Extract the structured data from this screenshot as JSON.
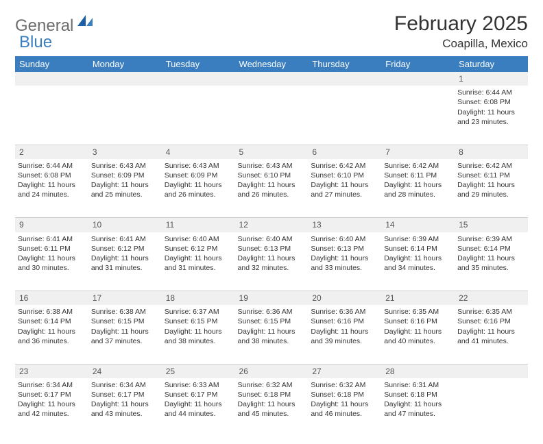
{
  "logo": {
    "general": "General",
    "blue": "Blue"
  },
  "title": "February 2025",
  "location": "Coapilla, Mexico",
  "colors": {
    "header_bg": "#3a7ebf",
    "header_fg": "#ffffff",
    "daynum_bg": "#f0f0f0",
    "text": "#333333",
    "logo_gray": "#6d6d6d",
    "logo_blue": "#3a7ebf"
  },
  "weekdays": [
    "Sunday",
    "Monday",
    "Tuesday",
    "Wednesday",
    "Thursday",
    "Friday",
    "Saturday"
  ],
  "weeks": [
    {
      "nums": [
        "",
        "",
        "",
        "",
        "",
        "",
        "1"
      ],
      "cells": [
        null,
        null,
        null,
        null,
        null,
        null,
        {
          "sunrise": "6:44 AM",
          "sunset": "6:08 PM",
          "daylight": "11 hours and 23 minutes."
        }
      ]
    },
    {
      "nums": [
        "2",
        "3",
        "4",
        "5",
        "6",
        "7",
        "8"
      ],
      "cells": [
        {
          "sunrise": "6:44 AM",
          "sunset": "6:08 PM",
          "daylight": "11 hours and 24 minutes."
        },
        {
          "sunrise": "6:43 AM",
          "sunset": "6:09 PM",
          "daylight": "11 hours and 25 minutes."
        },
        {
          "sunrise": "6:43 AM",
          "sunset": "6:09 PM",
          "daylight": "11 hours and 26 minutes."
        },
        {
          "sunrise": "6:43 AM",
          "sunset": "6:10 PM",
          "daylight": "11 hours and 26 minutes."
        },
        {
          "sunrise": "6:42 AM",
          "sunset": "6:10 PM",
          "daylight": "11 hours and 27 minutes."
        },
        {
          "sunrise": "6:42 AM",
          "sunset": "6:11 PM",
          "daylight": "11 hours and 28 minutes."
        },
        {
          "sunrise": "6:42 AM",
          "sunset": "6:11 PM",
          "daylight": "11 hours and 29 minutes."
        }
      ]
    },
    {
      "nums": [
        "9",
        "10",
        "11",
        "12",
        "13",
        "14",
        "15"
      ],
      "cells": [
        {
          "sunrise": "6:41 AM",
          "sunset": "6:11 PM",
          "daylight": "11 hours and 30 minutes."
        },
        {
          "sunrise": "6:41 AM",
          "sunset": "6:12 PM",
          "daylight": "11 hours and 31 minutes."
        },
        {
          "sunrise": "6:40 AM",
          "sunset": "6:12 PM",
          "daylight": "11 hours and 31 minutes."
        },
        {
          "sunrise": "6:40 AM",
          "sunset": "6:13 PM",
          "daylight": "11 hours and 32 minutes."
        },
        {
          "sunrise": "6:40 AM",
          "sunset": "6:13 PM",
          "daylight": "11 hours and 33 minutes."
        },
        {
          "sunrise": "6:39 AM",
          "sunset": "6:14 PM",
          "daylight": "11 hours and 34 minutes."
        },
        {
          "sunrise": "6:39 AM",
          "sunset": "6:14 PM",
          "daylight": "11 hours and 35 minutes."
        }
      ]
    },
    {
      "nums": [
        "16",
        "17",
        "18",
        "19",
        "20",
        "21",
        "22"
      ],
      "cells": [
        {
          "sunrise": "6:38 AM",
          "sunset": "6:14 PM",
          "daylight": "11 hours and 36 minutes."
        },
        {
          "sunrise": "6:38 AM",
          "sunset": "6:15 PM",
          "daylight": "11 hours and 37 minutes."
        },
        {
          "sunrise": "6:37 AM",
          "sunset": "6:15 PM",
          "daylight": "11 hours and 38 minutes."
        },
        {
          "sunrise": "6:36 AM",
          "sunset": "6:15 PM",
          "daylight": "11 hours and 38 minutes."
        },
        {
          "sunrise": "6:36 AM",
          "sunset": "6:16 PM",
          "daylight": "11 hours and 39 minutes."
        },
        {
          "sunrise": "6:35 AM",
          "sunset": "6:16 PM",
          "daylight": "11 hours and 40 minutes."
        },
        {
          "sunrise": "6:35 AM",
          "sunset": "6:16 PM",
          "daylight": "11 hours and 41 minutes."
        }
      ]
    },
    {
      "nums": [
        "23",
        "24",
        "25",
        "26",
        "27",
        "28",
        ""
      ],
      "cells": [
        {
          "sunrise": "6:34 AM",
          "sunset": "6:17 PM",
          "daylight": "11 hours and 42 minutes."
        },
        {
          "sunrise": "6:34 AM",
          "sunset": "6:17 PM",
          "daylight": "11 hours and 43 minutes."
        },
        {
          "sunrise": "6:33 AM",
          "sunset": "6:17 PM",
          "daylight": "11 hours and 44 minutes."
        },
        {
          "sunrise": "6:32 AM",
          "sunset": "6:18 PM",
          "daylight": "11 hours and 45 minutes."
        },
        {
          "sunrise": "6:32 AM",
          "sunset": "6:18 PM",
          "daylight": "11 hours and 46 minutes."
        },
        {
          "sunrise": "6:31 AM",
          "sunset": "6:18 PM",
          "daylight": "11 hours and 47 minutes."
        },
        null
      ]
    }
  ],
  "labels": {
    "sunrise": "Sunrise:",
    "sunset": "Sunset:",
    "daylight": "Daylight:"
  }
}
